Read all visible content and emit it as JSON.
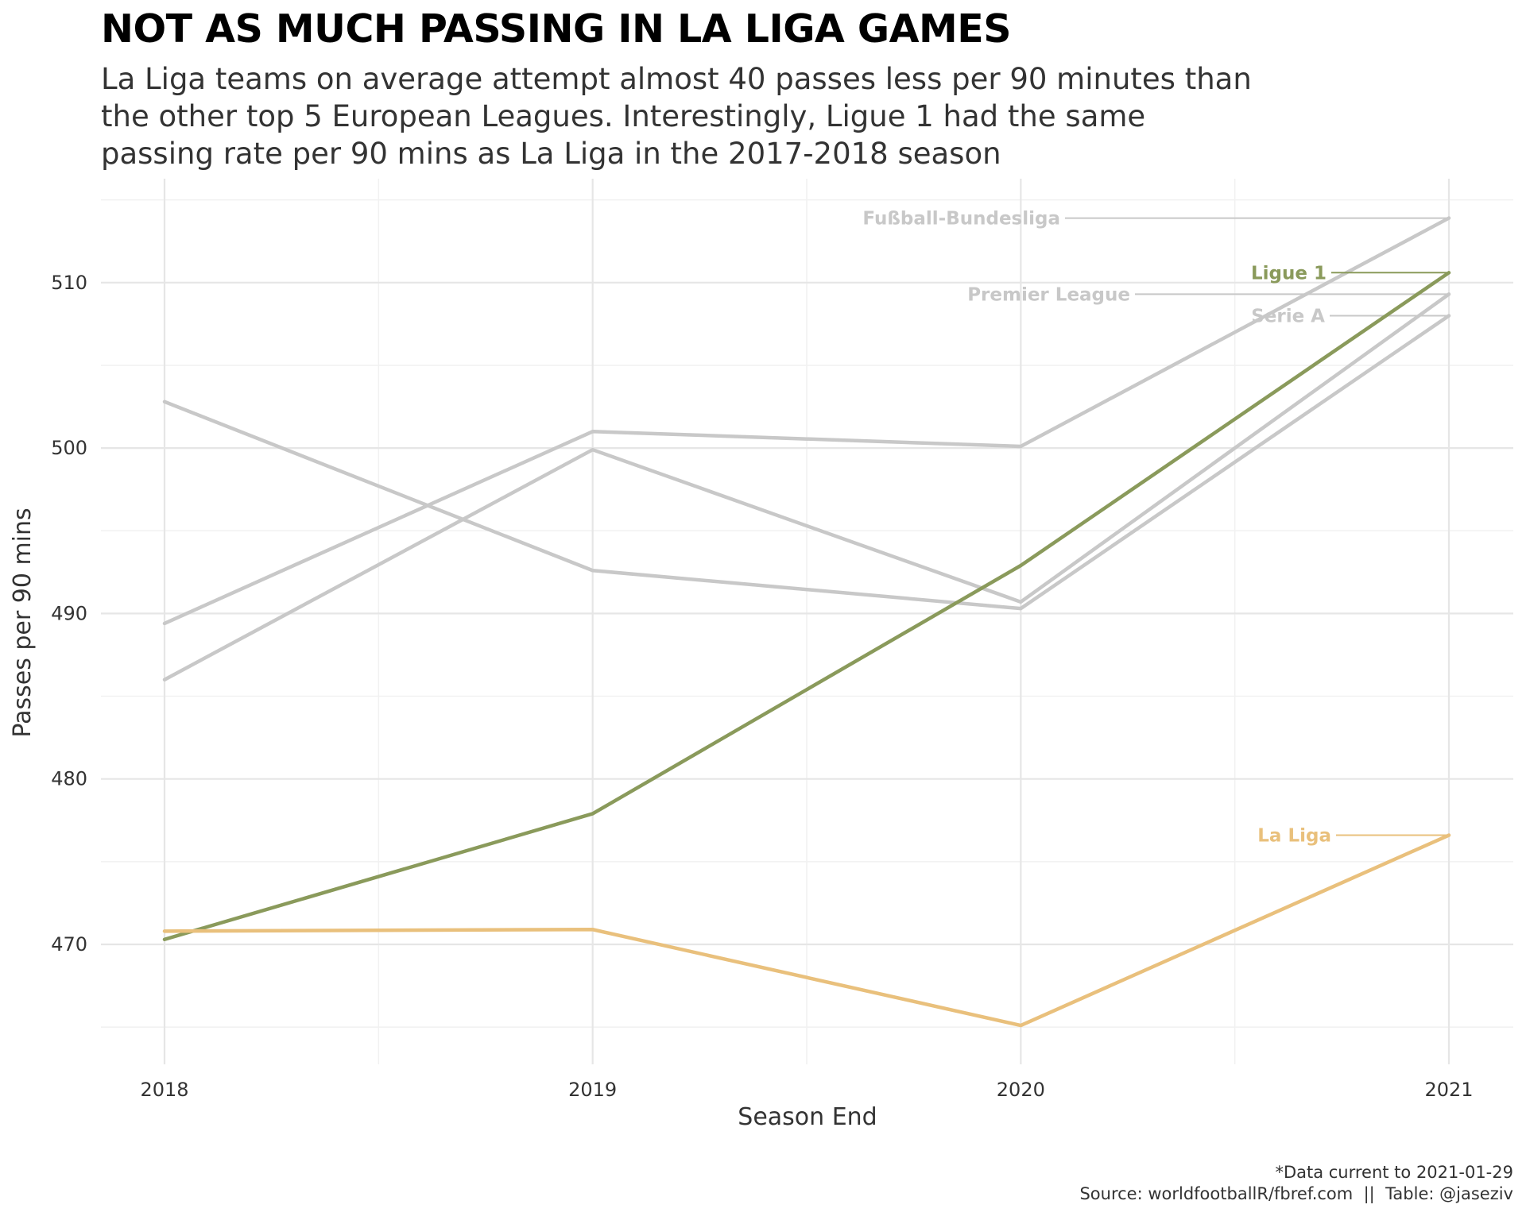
{
  "chart_data": {
    "type": "line",
    "title": "NOT AS MUCH PASSING IN LA LIGA GAMES",
    "subtitle": [
      "La Liga teams on average attempt almost 40 passes less per 90 minutes than",
      "the other top 5 European Leagues. Interestingly, Ligue 1 had the same",
      "passing rate per 90 mins as La Liga in the 2017-2018 season"
    ],
    "xlabel": "Season End",
    "ylabel": "Passes per 90 mins",
    "x": [
      2018,
      2019,
      2020,
      2021
    ],
    "x_ticks": [
      "2018",
      "2019",
      "2020",
      "2021"
    ],
    "y_ticks": [
      "470",
      "480",
      "490",
      "500",
      "510"
    ],
    "ylim": [
      463,
      516
    ],
    "grid": true,
    "series": [
      {
        "name": "Fußball-Bundesliga",
        "color": "#c8c8c8",
        "values": [
          489.4,
          501.0,
          500.1,
          513.9
        ]
      },
      {
        "name": "Premier League",
        "color": "#c8c8c8",
        "values": [
          486.0,
          499.9,
          490.7,
          509.3
        ]
      },
      {
        "name": "Serie A",
        "color": "#c8c8c8",
        "values": [
          502.8,
          492.6,
          490.3,
          508.0
        ]
      },
      {
        "name": "Ligue 1",
        "color": "#8a9a5b",
        "values": [
          470.3,
          477.9,
          492.9,
          510.6
        ]
      },
      {
        "name": "La Liga",
        "color": "#e9c07c",
        "values": [
          470.8,
          470.9,
          465.1,
          476.6
        ]
      }
    ],
    "footer": [
      "*Data current to 2021-01-29",
      "Source: worldfootballR/fbref.com  ||  Table: @jaseziv"
    ]
  }
}
